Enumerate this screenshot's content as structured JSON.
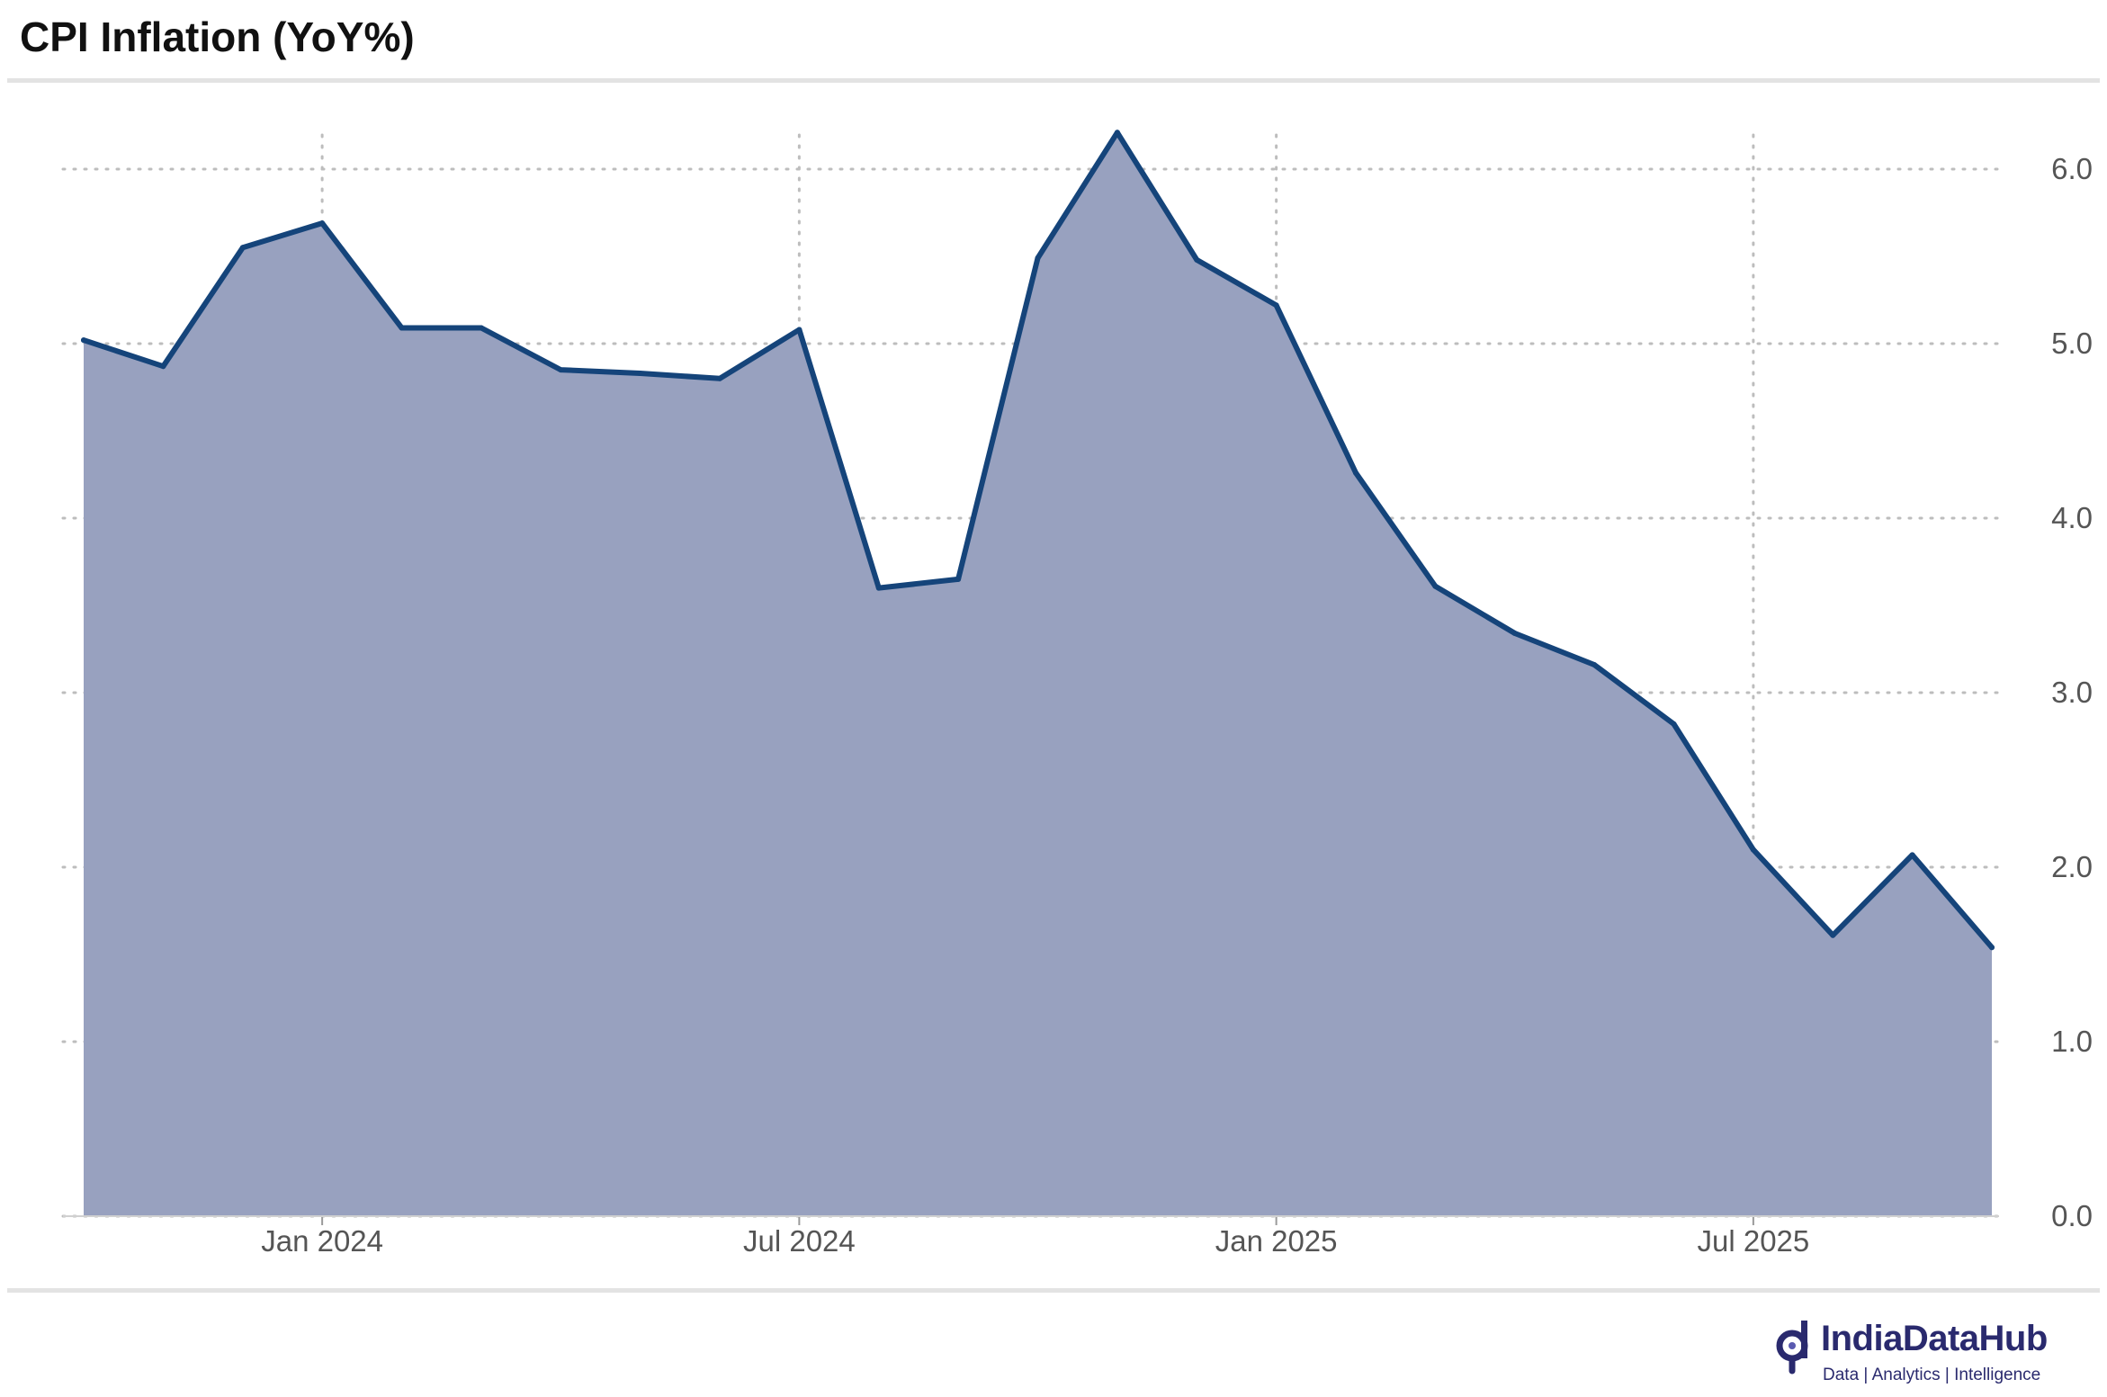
{
  "title": "CPI Inflation (YoY%)",
  "brand": {
    "name": "IndiaDataHub",
    "tagline": "Data | Analytics | Intelligence",
    "color": "#2a2a6e"
  },
  "chart_data": {
    "type": "area",
    "title": "CPI Inflation (YoY%)",
    "x": [
      "2023-10",
      "2023-11",
      "2023-12",
      "2024-01",
      "2024-02",
      "2024-03",
      "2024-04",
      "2024-05",
      "2024-06",
      "2024-07",
      "2024-08",
      "2024-09",
      "2024-10",
      "2024-11",
      "2024-12",
      "2025-01",
      "2025-02",
      "2025-03",
      "2025-04",
      "2025-05",
      "2025-06",
      "2025-07",
      "2025-08",
      "2025-09",
      "2025-10"
    ],
    "series": [
      {
        "values": [
          5.02,
          4.87,
          5.55,
          5.69,
          5.09,
          5.09,
          4.85,
          4.83,
          4.8,
          5.08,
          3.6,
          3.65,
          5.49,
          6.21,
          5.48,
          5.22,
          4.26,
          3.61,
          3.34,
          3.16,
          2.82,
          2.1,
          1.61,
          2.07,
          1.54
        ]
      }
    ],
    "x_ticks": [
      {
        "label": "Jan 2024",
        "x": "2024-01"
      },
      {
        "label": "Jul 2024",
        "x": "2024-07"
      },
      {
        "label": "Jan 2025",
        "x": "2025-01"
      },
      {
        "label": "Jul 2025",
        "x": "2025-07"
      }
    ],
    "y_ticks": [
      "0.0",
      "1.0",
      "2.0",
      "3.0",
      "4.0",
      "5.0",
      "6.0"
    ],
    "ylim": [
      0,
      6.0
    ],
    "y_axis_side": "right",
    "grid": "dotted",
    "line_color": "#15447a",
    "fill_color": "#98a1bf",
    "legend": "none"
  }
}
